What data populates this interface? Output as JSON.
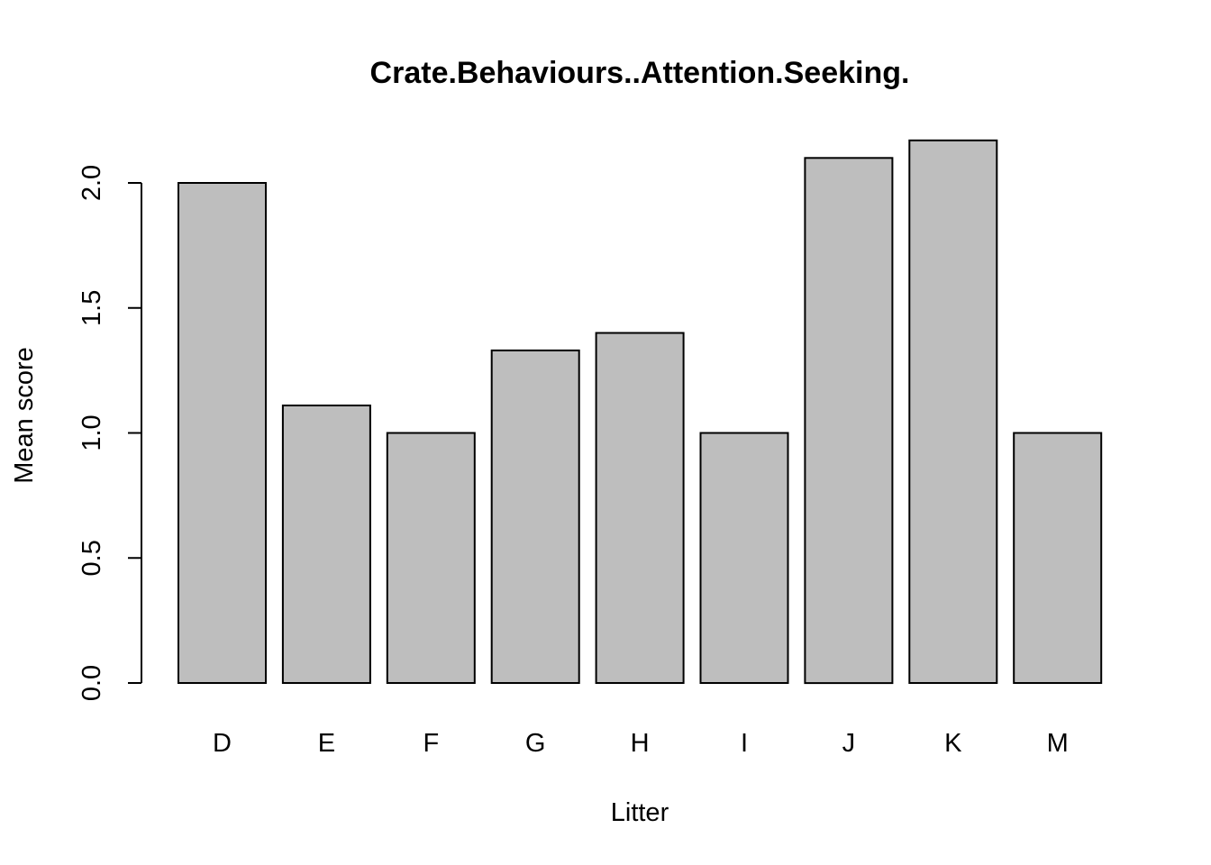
{
  "chart_data": {
    "type": "bar",
    "title": "Crate.Behaviours..Attention.Seeking.",
    "xlabel": "Litter",
    "ylabel": "Mean score",
    "categories": [
      "D",
      "E",
      "F",
      "G",
      "H",
      "I",
      "J",
      "K",
      "M"
    ],
    "values": [
      2.0,
      1.11,
      1.0,
      1.33,
      1.4,
      1.0,
      2.1,
      2.17,
      1.0
    ],
    "ylim": [
      0,
      2.0
    ],
    "yticks": [
      0.0,
      0.5,
      1.0,
      1.5,
      2.0
    ],
    "ytick_labels": [
      "0.0",
      "0.5",
      "1.0",
      "1.5",
      "2.0"
    ],
    "grid": false,
    "legend": "none",
    "colors": {
      "bar_fill": "#bebebe",
      "bar_stroke": "#000000",
      "axis": "#000000",
      "background": "#ffffff"
    }
  }
}
